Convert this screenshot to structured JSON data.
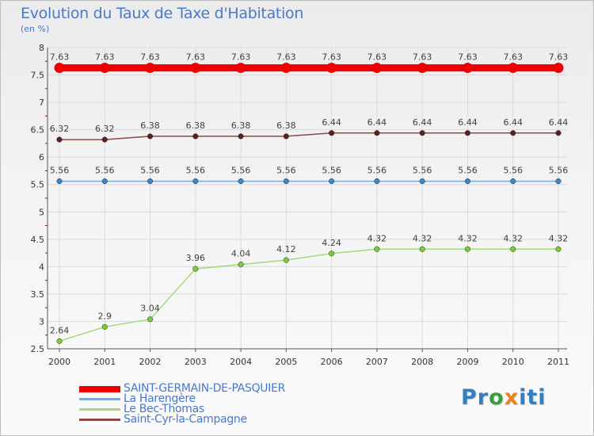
{
  "title": "Evolution du Taux de Taxe d'Habitation",
  "unit": "(en %)",
  "logo": {
    "text": "Proxiti",
    "letters": [
      {
        "char": "P",
        "color": "#2f7fc1"
      },
      {
        "char": "r",
        "color": "#2f7fc1"
      },
      {
        "char": "o",
        "color": "#3a9e3a"
      },
      {
        "char": "x",
        "color": "#e8831f"
      },
      {
        "char": "i",
        "color": "#2f7fc1"
      },
      {
        "char": "t",
        "color": "#2f7fc1"
      },
      {
        "char": "i",
        "color": "#2f7fc1"
      }
    ]
  },
  "chart_data": {
    "type": "line",
    "title": "Evolution du Taux de Taxe d'Habitation",
    "ylabel": "(en %)",
    "xlabel": "",
    "categories": [
      "2000",
      "2001",
      "2002",
      "2003",
      "2004",
      "2005",
      "2006",
      "2007",
      "2008",
      "2009",
      "2010",
      "2011"
    ],
    "ylim": [
      2.5,
      8
    ],
    "yticks": [
      2.5,
      3,
      3.5,
      4,
      4.5,
      5,
      5.5,
      6,
      6.5,
      7,
      7.5,
      8
    ],
    "ytick_labels": [
      "2.5",
      "3",
      "3.5",
      "4",
      "4.5",
      "5",
      "5.5",
      "6",
      "6.5",
      "7",
      "7.5",
      "8"
    ],
    "grid": true,
    "legend_position": "bottom-left",
    "series": [
      {
        "name": "SAINT-GERMAIN-DE-PASQUIER",
        "color": "#ee0000",
        "emphasis": true,
        "values": [
          7.63,
          7.63,
          7.63,
          7.63,
          7.63,
          7.63,
          7.63,
          7.63,
          7.63,
          7.63,
          7.63,
          7.63
        ],
        "labels": [
          "7.63",
          "7.63",
          "7.63",
          "7.63",
          "7.63",
          "7.63",
          "7.63",
          "7.63",
          "7.63",
          "7.63",
          "7.63",
          "7.63"
        ]
      },
      {
        "name": "La Harengère",
        "color": "#7ea6d6",
        "marker": "#3f86c9",
        "values": [
          5.56,
          5.56,
          5.56,
          5.56,
          5.56,
          5.56,
          5.56,
          5.56,
          5.56,
          5.56,
          5.56,
          5.56
        ],
        "labels": [
          "5.56",
          "5.56",
          "5.56",
          "5.56",
          "5.56",
          "5.56",
          "5.56",
          "5.56",
          "5.56",
          "5.56",
          "5.56",
          "5.56"
        ]
      },
      {
        "name": "Le Bec-Thomas",
        "color": "#a6d97c",
        "marker": "#7cc93a",
        "values": [
          2.64,
          2.9,
          3.04,
          3.96,
          4.04,
          4.12,
          4.24,
          4.32,
          4.32,
          4.32,
          4.32,
          4.32
        ],
        "labels": [
          "2.64",
          "2.9",
          "3.04",
          "3.96",
          "4.04",
          "4.12",
          "4.24",
          "4.32",
          "4.32",
          "4.32",
          "4.32",
          "4.32"
        ]
      },
      {
        "name": "Saint-Cyr-la-Campagne",
        "color": "#8a4a4a",
        "marker": "#5e1f1f",
        "values": [
          6.32,
          6.32,
          6.38,
          6.38,
          6.38,
          6.38,
          6.44,
          6.44,
          6.44,
          6.44,
          6.44,
          6.44
        ],
        "labels": [
          "6.32",
          "6.32",
          "6.38",
          "6.38",
          "6.38",
          "6.38",
          "6.44",
          "6.44",
          "6.44",
          "6.44",
          "6.44",
          "6.44"
        ]
      }
    ]
  }
}
